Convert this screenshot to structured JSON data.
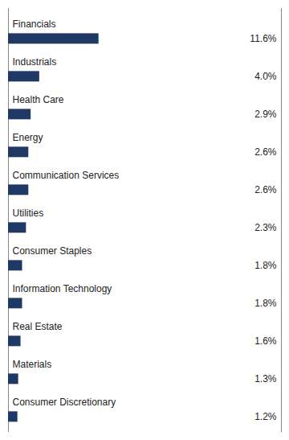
{
  "chart_data": {
    "type": "bar",
    "orientation": "horizontal",
    "categories": [
      "Financials",
      "Industrials",
      "Health Care",
      "Energy",
      "Communication Services",
      "Utilities",
      "Consumer Staples",
      "Information Technology",
      "Real Estate",
      "Materials",
      "Consumer Discretionary"
    ],
    "values": [
      11.6,
      4.0,
      2.9,
      2.6,
      2.6,
      2.3,
      1.8,
      1.8,
      1.6,
      1.3,
      1.2
    ],
    "value_labels": [
      "11.6%",
      "4.0%",
      "2.9%",
      "2.6%",
      "2.6%",
      "2.3%",
      "1.8%",
      "1.8%",
      "1.6%",
      "1.3%",
      "1.2%"
    ],
    "color": "#1f3864",
    "xlim": [
      0,
      35
    ],
    "data_labels": true,
    "tick_labels": false,
    "grid": false
  }
}
